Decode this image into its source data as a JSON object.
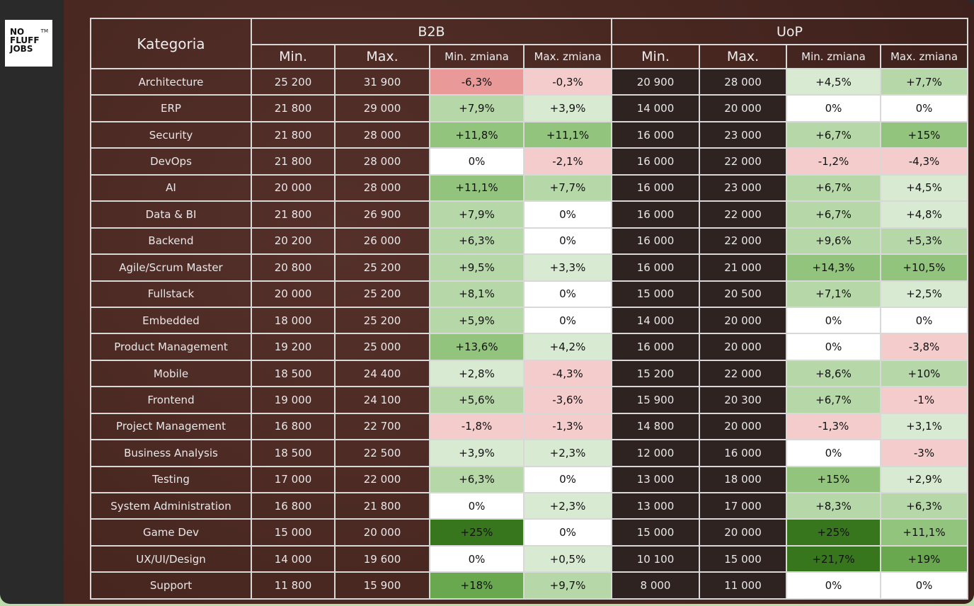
{
  "logo": {
    "text": [
      "NO",
      "FLUFF",
      "JOBS"
    ],
    "tm": "TM"
  },
  "header": {
    "category": "Kategoria",
    "b2b": "B2B",
    "uop": "UoP",
    "min": "Min.",
    "max": "Max.",
    "min_change": "Min. zmiana",
    "max_change": "Max. zmiana"
  },
  "colors": {
    "white": "#ffffff",
    "red_light": "#f4cccc",
    "red": "#ea9999",
    "green_1": "#d9ead3",
    "green_2": "#b6d7a8",
    "green_3": "#93c47d",
    "green_4": "#6aa84f",
    "green_5": "#38761d"
  },
  "rows": [
    {
      "cat": "Architecture",
      "b2b_min": "25 200",
      "b2b_max": "31 900",
      "b2b_min_ch": "-6,3%",
      "b2b_max_ch": "-0,3%",
      "uop_min": "20 900",
      "uop_max": "28 000",
      "uop_min_ch": "+4,5%",
      "uop_max_ch": "+7,7%",
      "lv": [
        "r2",
        "r1",
        "g1",
        "g2"
      ]
    },
    {
      "cat": "ERP",
      "b2b_min": "21 800",
      "b2b_max": "29 000",
      "b2b_min_ch": "+7,9%",
      "b2b_max_ch": "+3,9%",
      "uop_min": "14 000",
      "uop_max": "20 000",
      "uop_min_ch": "0%",
      "uop_max_ch": "0%",
      "lv": [
        "g2",
        "g1",
        "w",
        "w"
      ]
    },
    {
      "cat": "Security",
      "b2b_min": "21 800",
      "b2b_max": "28 000",
      "b2b_min_ch": "+11,8%",
      "b2b_max_ch": "+11,1%",
      "uop_min": "16 000",
      "uop_max": "23 000",
      "uop_min_ch": "+6,7%",
      "uop_max_ch": "+15%",
      "lv": [
        "g3",
        "g3",
        "g2",
        "g3"
      ]
    },
    {
      "cat": "DevOps",
      "b2b_min": "21 800",
      "b2b_max": "28 000",
      "b2b_min_ch": "0%",
      "b2b_max_ch": "-2,1%",
      "uop_min": "16 000",
      "uop_max": "22 000",
      "uop_min_ch": "-1,2%",
      "uop_max_ch": "-4,3%",
      "lv": [
        "w",
        "r1",
        "r1",
        "r1"
      ]
    },
    {
      "cat": "AI",
      "b2b_min": "20 000",
      "b2b_max": "28 000",
      "b2b_min_ch": "+11,1%",
      "b2b_max_ch": "+7,7%",
      "uop_min": "16 000",
      "uop_max": "23 000",
      "uop_min_ch": "+6,7%",
      "uop_max_ch": "+4,5%",
      "lv": [
        "g3",
        "g2",
        "g2",
        "g1"
      ]
    },
    {
      "cat": "Data & BI",
      "b2b_min": "21 800",
      "b2b_max": "26 900",
      "b2b_min_ch": "+7,9%",
      "b2b_max_ch": "0%",
      "uop_min": "16 000",
      "uop_max": "22 000",
      "uop_min_ch": "+6,7%",
      "uop_max_ch": "+4,8%",
      "lv": [
        "g2",
        "w",
        "g2",
        "g1"
      ]
    },
    {
      "cat": "Backend",
      "b2b_min": "20 200",
      "b2b_max": "26 000",
      "b2b_min_ch": "+6,3%",
      "b2b_max_ch": "0%",
      "uop_min": "16 000",
      "uop_max": "22 000",
      "uop_min_ch": "+9,6%",
      "uop_max_ch": "+5,3%",
      "lv": [
        "g2",
        "w",
        "g2",
        "g2"
      ]
    },
    {
      "cat": "Agile/Scrum Master",
      "b2b_min": "20 800",
      "b2b_max": "25 200",
      "b2b_min_ch": "+9,5%",
      "b2b_max_ch": "+3,3%",
      "uop_min": "16 000",
      "uop_max": "21 000",
      "uop_min_ch": "+14,3%",
      "uop_max_ch": "+10,5%",
      "lv": [
        "g2",
        "g1",
        "g3",
        "g3"
      ]
    },
    {
      "cat": "Fullstack",
      "b2b_min": "20 000",
      "b2b_max": "25 200",
      "b2b_min_ch": "+8,1%",
      "b2b_max_ch": "0%",
      "uop_min": "15 000",
      "uop_max": "20 500",
      "uop_min_ch": "+7,1%",
      "uop_max_ch": "+2,5%",
      "lv": [
        "g2",
        "w",
        "g2",
        "g1"
      ]
    },
    {
      "cat": "Embedded",
      "b2b_min": "18 000",
      "b2b_max": "25 200",
      "b2b_min_ch": "+5,9%",
      "b2b_max_ch": "0%",
      "uop_min": "14 000",
      "uop_max": "20 000",
      "uop_min_ch": "0%",
      "uop_max_ch": "0%",
      "lv": [
        "g2",
        "w",
        "w",
        "w"
      ]
    },
    {
      "cat": "Product Management",
      "b2b_min": "19 200",
      "b2b_max": "25 000",
      "b2b_min_ch": "+13,6%",
      "b2b_max_ch": "+4,2%",
      "uop_min": "16 000",
      "uop_max": "20 000",
      "uop_min_ch": "0%",
      "uop_max_ch": "-3,8%",
      "lv": [
        "g3",
        "g1",
        "w",
        "r1"
      ]
    },
    {
      "cat": "Mobile",
      "b2b_min": "18 500",
      "b2b_max": "24 400",
      "b2b_min_ch": "+2,8%",
      "b2b_max_ch": "-4,3%",
      "uop_min": "15 200",
      "uop_max": "22 000",
      "uop_min_ch": "+8,6%",
      "uop_max_ch": "+10%",
      "lv": [
        "g1",
        "r1",
        "g2",
        "g2"
      ]
    },
    {
      "cat": "Frontend",
      "b2b_min": "19 000",
      "b2b_max": "24 100",
      "b2b_min_ch": "+5,6%",
      "b2b_max_ch": "-3,6%",
      "uop_min": "15 900",
      "uop_max": "20 300",
      "uop_min_ch": "+6,7%",
      "uop_max_ch": "-1%",
      "lv": [
        "g2",
        "r1",
        "g2",
        "r1"
      ]
    },
    {
      "cat": "Project Management",
      "b2b_min": "16 800",
      "b2b_max": "22 700",
      "b2b_min_ch": "-1,8%",
      "b2b_max_ch": "-1,3%",
      "uop_min": "14 800",
      "uop_max": "20 000",
      "uop_min_ch": "-1,3%",
      "uop_max_ch": "+3,1%",
      "lv": [
        "r1",
        "r1",
        "r1",
        "g1"
      ]
    },
    {
      "cat": "Business Analysis",
      "b2b_min": "18 500",
      "b2b_max": "22 500",
      "b2b_min_ch": "+3,9%",
      "b2b_max_ch": "+2,3%",
      "uop_min": "12 000",
      "uop_max": "16 000",
      "uop_min_ch": "0%",
      "uop_max_ch": "-3%",
      "lv": [
        "g1",
        "g1",
        "w",
        "r1"
      ]
    },
    {
      "cat": "Testing",
      "b2b_min": "17 000",
      "b2b_max": "22 000",
      "b2b_min_ch": "+6,3%",
      "b2b_max_ch": "0%",
      "uop_min": "13 000",
      "uop_max": "18 000",
      "uop_min_ch": "+15%",
      "uop_max_ch": "+2,9%",
      "lv": [
        "g2",
        "w",
        "g3",
        "g1"
      ]
    },
    {
      "cat": "System Administration",
      "b2b_min": "16 800",
      "b2b_max": "21 800",
      "b2b_min_ch": "0%",
      "b2b_max_ch": "+2,3%",
      "uop_min": "13 000",
      "uop_max": "17 000",
      "uop_min_ch": "+8,3%",
      "uop_max_ch": "+6,3%",
      "lv": [
        "w",
        "g1",
        "g2",
        "g2"
      ]
    },
    {
      "cat": "Game Dev",
      "b2b_min": "15 000",
      "b2b_max": "20 000",
      "b2b_min_ch": "+25%",
      "b2b_max_ch": "0%",
      "uop_min": "15 000",
      "uop_max": "20 000",
      "uop_min_ch": "+25%",
      "uop_max_ch": "+11,1%",
      "lv": [
        "g5",
        "w",
        "g5",
        "g3"
      ]
    },
    {
      "cat": "UX/UI/Design",
      "b2b_min": "14 000",
      "b2b_max": "19 600",
      "b2b_min_ch": "0%",
      "b2b_max_ch": "+0,5%",
      "uop_min": "10 100",
      "uop_max": "15 000",
      "uop_min_ch": "+21,7%",
      "uop_max_ch": "+19%",
      "lv": [
        "w",
        "g1",
        "g5",
        "g4"
      ]
    },
    {
      "cat": "Support",
      "b2b_min": "11 800",
      "b2b_max": "15 900",
      "b2b_min_ch": "+18%",
      "b2b_max_ch": "+9,7%",
      "uop_min": "8 000",
      "uop_max": "11 000",
      "uop_min_ch": "0%",
      "uop_max_ch": "0%",
      "lv": [
        "g4",
        "g2",
        "w",
        "w"
      ]
    }
  ]
}
